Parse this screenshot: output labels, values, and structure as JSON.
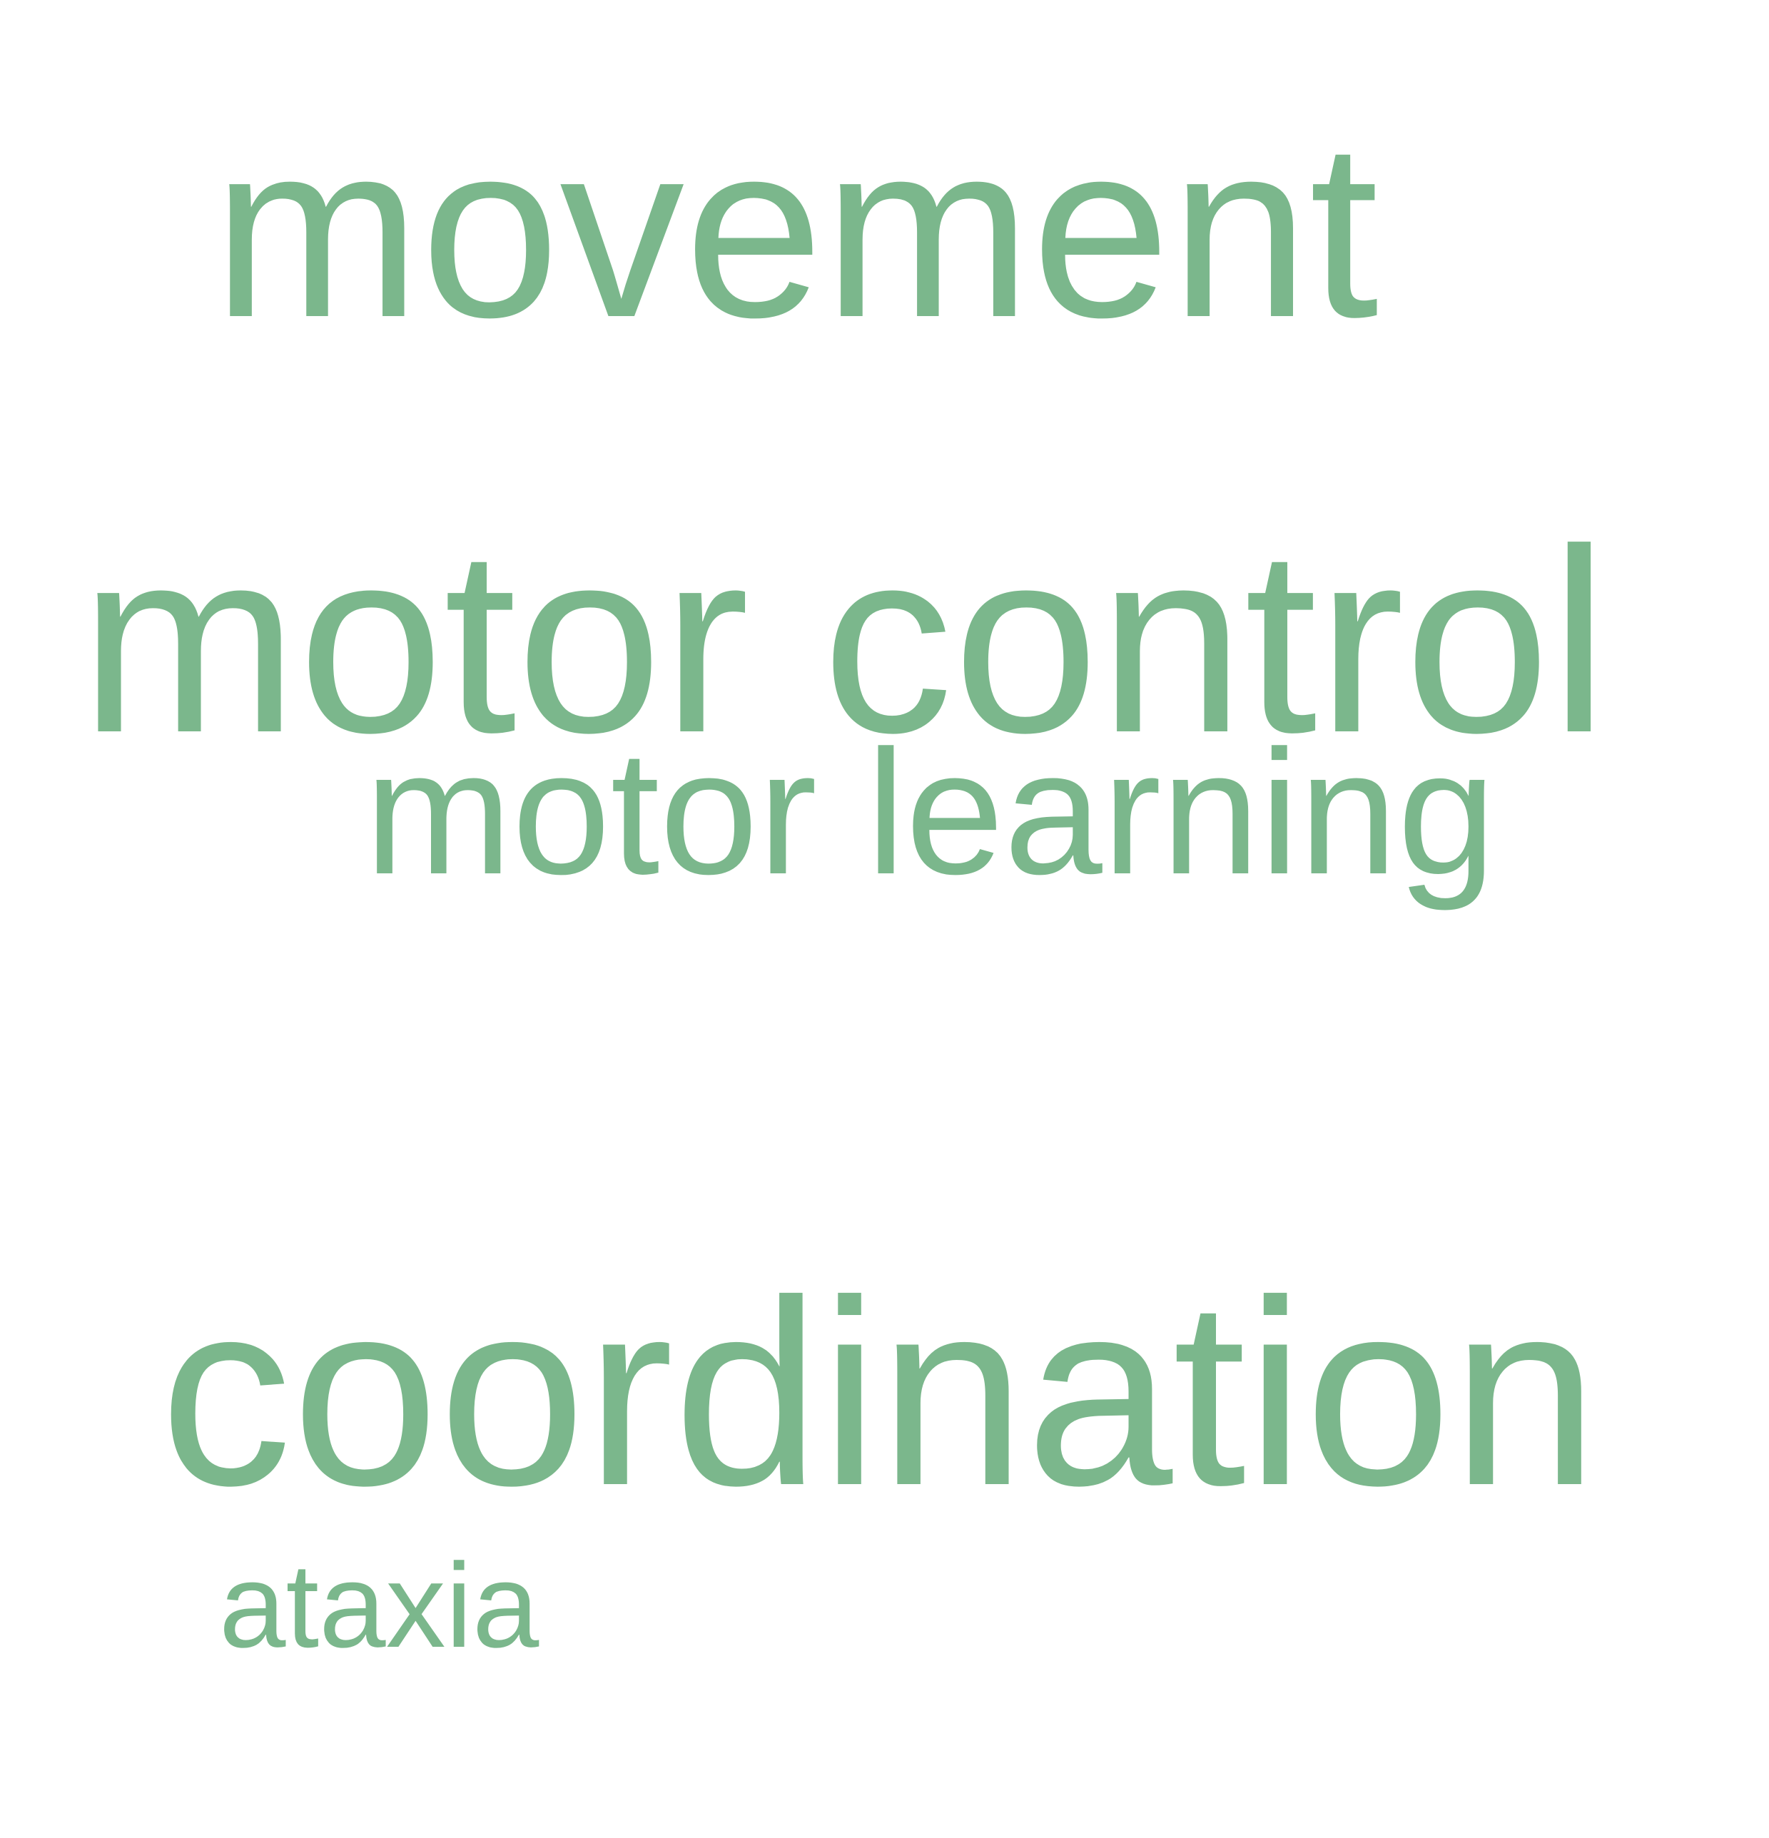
{
  "color": "#7bb78c",
  "words": {
    "movement": "movement",
    "motor_control": "motor control",
    "motor_learning": "motor learning",
    "coordination": "coordination",
    "ataxia": "ataxia"
  }
}
